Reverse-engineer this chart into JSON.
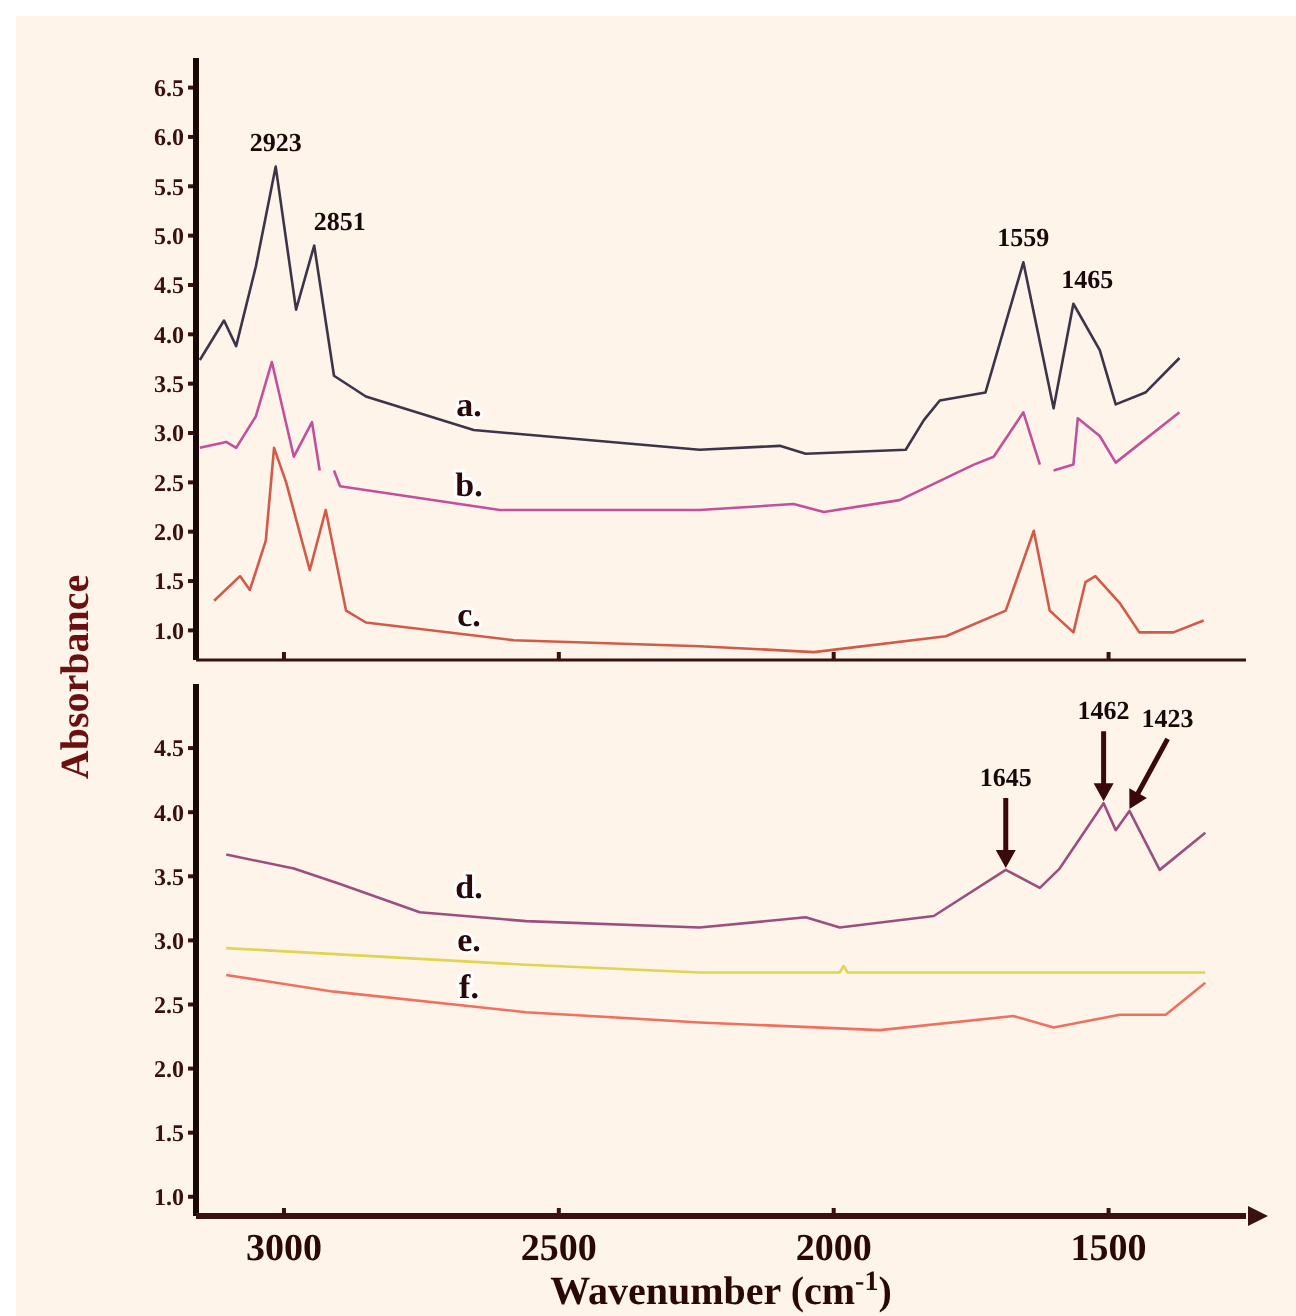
{
  "chart_data": [
    {
      "type": "line",
      "xlim": [
        3160,
        1250
      ],
      "ylim": [
        0.7,
        6.8
      ],
      "tick_labels": "y",
      "xticks": [
        3000,
        2500,
        2000,
        1500
      ],
      "yticks": [
        {
          "value": 1,
          "label": "1.0"
        },
        {
          "value": 1.5,
          "label": "1.5"
        },
        {
          "value": 2,
          "label": "2.0"
        },
        {
          "value": 2.5,
          "label": "2.5"
        },
        {
          "value": 3,
          "label": "3.0"
        },
        {
          "value": 3.5,
          "label": "3.5"
        },
        {
          "value": 4,
          "label": "4.0"
        },
        {
          "value": 4.5,
          "label": "4.5"
        },
        {
          "value": 5,
          "label": "5.0"
        },
        {
          "value": 5.5,
          "label": "5.5"
        },
        {
          "value": 6,
          "label": "6.0"
        },
        {
          "value": 6.5,
          "label": "6.5"
        }
      ],
      "ylabel": "Absorbance",
      "series": [
        {
          "name": "a.",
          "color": "#3c3448",
          "x": [
            3153,
            3109,
            3087,
            3051,
            3015,
            2978,
            2945,
            2909,
            2851,
            2655,
            2244,
            2098,
            2051,
            1869,
            1836,
            1807,
            1724,
            1655,
            1600,
            1564,
            1516,
            1487,
            1433,
            1371
          ],
          "values": [
            3.74,
            4.14,
            3.88,
            4.69,
            5.7,
            4.25,
            4.9,
            3.58,
            3.37,
            3.03,
            2.83,
            2.87,
            2.79,
            2.83,
            3.13,
            3.33,
            3.41,
            4.73,
            3.25,
            4.31,
            3.84,
            3.29,
            3.41,
            3.76
          ]
        },
        {
          "name": "b.",
          "color": "#c2509a",
          "x": [
            3153,
            3105,
            3087,
            3051,
            3022,
            2982,
            2949,
            2935,
            2925,
            2909,
            2898,
            2607,
            2244,
            2073,
            2018,
            1880,
            1745,
            1709,
            1655,
            1625,
            1615,
            1600,
            1564,
            1556,
            1516,
            1487,
            1371
          ],
          "values": [
            2.85,
            2.91,
            2.85,
            3.17,
            3.72,
            2.76,
            3.11,
            2.62,
            null,
            2.62,
            2.46,
            2.22,
            2.22,
            2.28,
            2.2,
            2.32,
            2.68,
            2.76,
            3.21,
            2.68,
            null,
            2.62,
            2.68,
            3.15,
            2.97,
            2.7,
            3.21
          ]
        },
        {
          "name": "c.",
          "color": "#d25a48",
          "x": [
            3127,
            3080,
            3062,
            3033,
            3018,
            2996,
            2953,
            2924,
            2887,
            2851,
            2582,
            2244,
            2036,
            1796,
            1687,
            1636,
            1607,
            1564,
            1542,
            1524,
            1480,
            1444,
            1382,
            1327
          ],
          "values": [
            1.3,
            1.55,
            1.41,
            1.91,
            2.85,
            2.5,
            1.61,
            2.22,
            1.2,
            1.08,
            0.9,
            0.84,
            0.78,
            0.94,
            1.2,
            2.01,
            1.2,
            0.98,
            1.49,
            1.55,
            1.28,
            0.98,
            0.98,
            1.1
          ]
        }
      ],
      "annotations": [
        {
          "text": "2923",
          "x": 3015,
          "y": 5.7
        },
        {
          "text": "2851",
          "x": 2945,
          "y": 4.9
        },
        {
          "text": "1559",
          "x": 1655,
          "y": 4.73
        },
        {
          "text": "1465",
          "x": 1564,
          "y": 4.31
        }
      ]
    },
    {
      "type": "line",
      "xlim": [
        3160,
        1250
      ],
      "ylim": [
        0.85,
        5.0
      ],
      "xticks": [
        3000,
        2500,
        2000,
        1500
      ],
      "yticks": [
        {
          "value": 1,
          "label": "1.0"
        },
        {
          "value": 1.5,
          "label": "1.5"
        },
        {
          "value": 2,
          "label": "2.0"
        },
        {
          "value": 2.5,
          "label": "2.5"
        },
        {
          "value": 3,
          "label": "3.0"
        },
        {
          "value": 3.5,
          "label": "3.5"
        },
        {
          "value": 4,
          "label": "4.0"
        },
        {
          "value": 4.5,
          "label": "4.5"
        }
      ],
      "xlabel": "Wavenumber (cm$^{-1}$)",
      "series": [
        {
          "name": "d.",
          "color": "#9a4f80",
          "x": [
            3105,
            2982,
            2898,
            2753,
            2560,
            2244,
            2051,
            1989,
            1818,
            1687,
            1625,
            1589,
            1509,
            1487,
            1462,
            1407,
            1324
          ],
          "values": [
            3.67,
            3.56,
            3.44,
            3.22,
            3.15,
            3.1,
            3.18,
            3.1,
            3.19,
            3.55,
            3.41,
            3.56,
            4.07,
            3.86,
            4.01,
            3.55,
            3.84
          ]
        },
        {
          "name": "e.",
          "color": "#e0d450",
          "x": [
            3105,
            2560,
            2244,
            2051,
            1989,
            1982,
            1975,
            1505,
            1324
          ],
          "values": [
            2.94,
            2.81,
            2.75,
            2.75,
            2.75,
            2.8,
            2.75,
            2.75,
            2.75
          ]
        },
        {
          "name": "f.",
          "color": "#f07060",
          "x": [
            3105,
            2909,
            2560,
            2244,
            1916,
            1673,
            1600,
            1480,
            1396,
            1324
          ],
          "values": [
            2.73,
            2.6,
            2.44,
            2.36,
            2.3,
            2.41,
            2.32,
            2.42,
            2.42,
            2.67
          ]
        }
      ],
      "annotations": [
        "1645",
        "1462",
        "1423"
      ]
    }
  ]
}
